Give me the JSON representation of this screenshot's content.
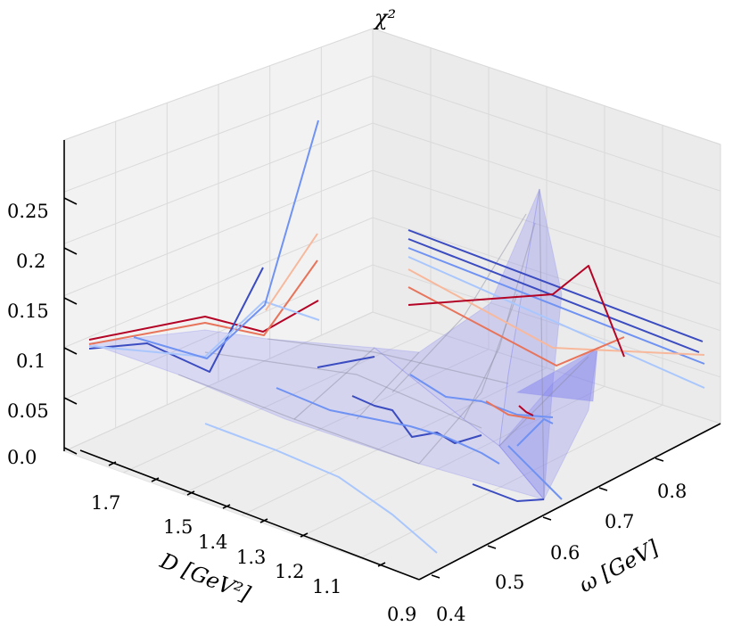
{
  "chart_data": {
    "type": "surface3d",
    "zlabel": "χ²",
    "xlabel": "D [GeV²]",
    "ylabel": "ω [GeV]",
    "x_ticks": [
      "1.7",
      "1.5",
      "1.4",
      "1.3",
      "1.2",
      "1.1",
      "0.9"
    ],
    "y_ticks": [
      "0.4",
      "0.5",
      "0.6",
      "0.7",
      "0.8"
    ],
    "z_ticks": [
      "0.0",
      "0.05",
      "0.1",
      "0.15",
      "0.2",
      "0.25"
    ],
    "zlim": [
      0,
      0.3
    ],
    "grid": true,
    "surface_color": "#7b7bf0",
    "colormap": "coolwarm",
    "colormap_colors": [
      "#3b4cc0",
      "#6f92f3",
      "#aac7fd",
      "#dddcdc",
      "#f7b89c",
      "#e7745b",
      "#b40426"
    ],
    "line_series": [
      {
        "color": "#b40426",
        "points": [
          [
            100,
            381
          ],
          [
            230,
            355
          ],
          [
            295,
            372
          ],
          [
            357,
            337
          ]
        ]
      },
      {
        "color": "#e7745b",
        "points": [
          [
            100,
            386
          ],
          [
            230,
            362
          ],
          [
            296,
            376
          ],
          [
            356,
            292
          ]
        ]
      },
      {
        "color": "#3b4cc0",
        "points": [
          [
            100,
            391
          ],
          [
            165,
            385
          ],
          [
            235,
            417
          ],
          [
            295,
            300
          ]
        ]
      },
      {
        "color": "#aac7fd",
        "points": [
          [
            100,
            388
          ],
          [
            230,
            400
          ],
          [
            296,
            338
          ],
          [
            358,
            359
          ]
        ]
      },
      {
        "color": "#6f92f3",
        "points": [
          [
            150,
            378
          ],
          [
            232,
            402
          ],
          [
            297,
            342
          ],
          [
            357,
            135
          ]
        ]
      },
      {
        "color": "#f7b89c",
        "points": [
          [
            298,
            348
          ],
          [
            356,
            262
          ]
        ]
      },
      {
        "color": "#3b4cc0",
        "points": [
          [
            458,
            258
          ],
          [
            788,
            383
          ]
        ]
      },
      {
        "color": "#3b4cc0",
        "points": [
          [
            458,
            268
          ],
          [
            784,
            395
          ]
        ]
      },
      {
        "color": "#6f92f3",
        "points": [
          [
            458,
            278
          ],
          [
            790,
            408
          ]
        ]
      },
      {
        "color": "#aac7fd",
        "points": [
          [
            458,
            288
          ],
          [
            790,
            435
          ]
        ]
      },
      {
        "color": "#f7b89c",
        "points": [
          [
            458,
            302
          ],
          [
            620,
            390
          ],
          [
            790,
            398
          ]
        ]
      },
      {
        "color": "#e7745b",
        "points": [
          [
            458,
            322
          ],
          [
            624,
            410
          ],
          [
            700,
            378
          ]
        ]
      },
      {
        "color": "#b40426",
        "points": [
          [
            458,
            342
          ],
          [
            620,
            330
          ],
          [
            660,
            298
          ],
          [
            700,
            400
          ]
        ]
      },
      {
        "color": "#3b4cc0",
        "points": [
          [
            356,
            412
          ],
          [
            420,
            400
          ]
        ]
      },
      {
        "color": "#3b4cc0",
        "points": [
          [
            395,
            444
          ],
          [
            420,
            455
          ],
          [
            440,
            460
          ],
          [
            462,
            490
          ],
          [
            490,
            485
          ],
          [
            510,
            497
          ],
          [
            540,
            488
          ]
        ]
      },
      {
        "color": "#6f92f3",
        "points": [
          [
            310,
            435
          ],
          [
            370,
            460
          ],
          [
            420,
            470
          ],
          [
            460,
            478
          ],
          [
            500,
            490
          ],
          [
            540,
            508
          ],
          [
            560,
            520
          ]
        ]
      },
      {
        "color": "#6f92f3",
        "points": [
          [
            460,
            420
          ],
          [
            500,
            445
          ],
          [
            540,
            450
          ],
          [
            580,
            465
          ],
          [
            620,
            468
          ]
        ]
      },
      {
        "color": "#aac7fd",
        "points": [
          [
            230,
            475
          ],
          [
            310,
            505
          ],
          [
            380,
            535
          ],
          [
            440,
            577
          ],
          [
            490,
            620
          ]
        ]
      },
      {
        "color": "#3b4cc0",
        "points": [
          [
            530,
            543
          ],
          [
            580,
            562
          ],
          [
            610,
            560
          ]
        ]
      },
      {
        "color": "#6f92f3",
        "points": [
          [
            570,
            500
          ],
          [
            610,
            540
          ],
          [
            630,
            560
          ]
        ]
      },
      {
        "color": "#e7745b",
        "points": [
          [
            545,
            450
          ],
          [
            570,
            465
          ],
          [
            600,
            470
          ]
        ]
      },
      {
        "color": "#b40426",
        "points": [
          [
            582,
            455
          ],
          [
            590,
            462
          ],
          [
            598,
            466
          ]
        ]
      },
      {
        "color": "#6f92f3",
        "points": [
          [
            580,
            500
          ],
          [
            610,
            470
          ],
          [
            620,
            475
          ]
        ]
      }
    ]
  }
}
